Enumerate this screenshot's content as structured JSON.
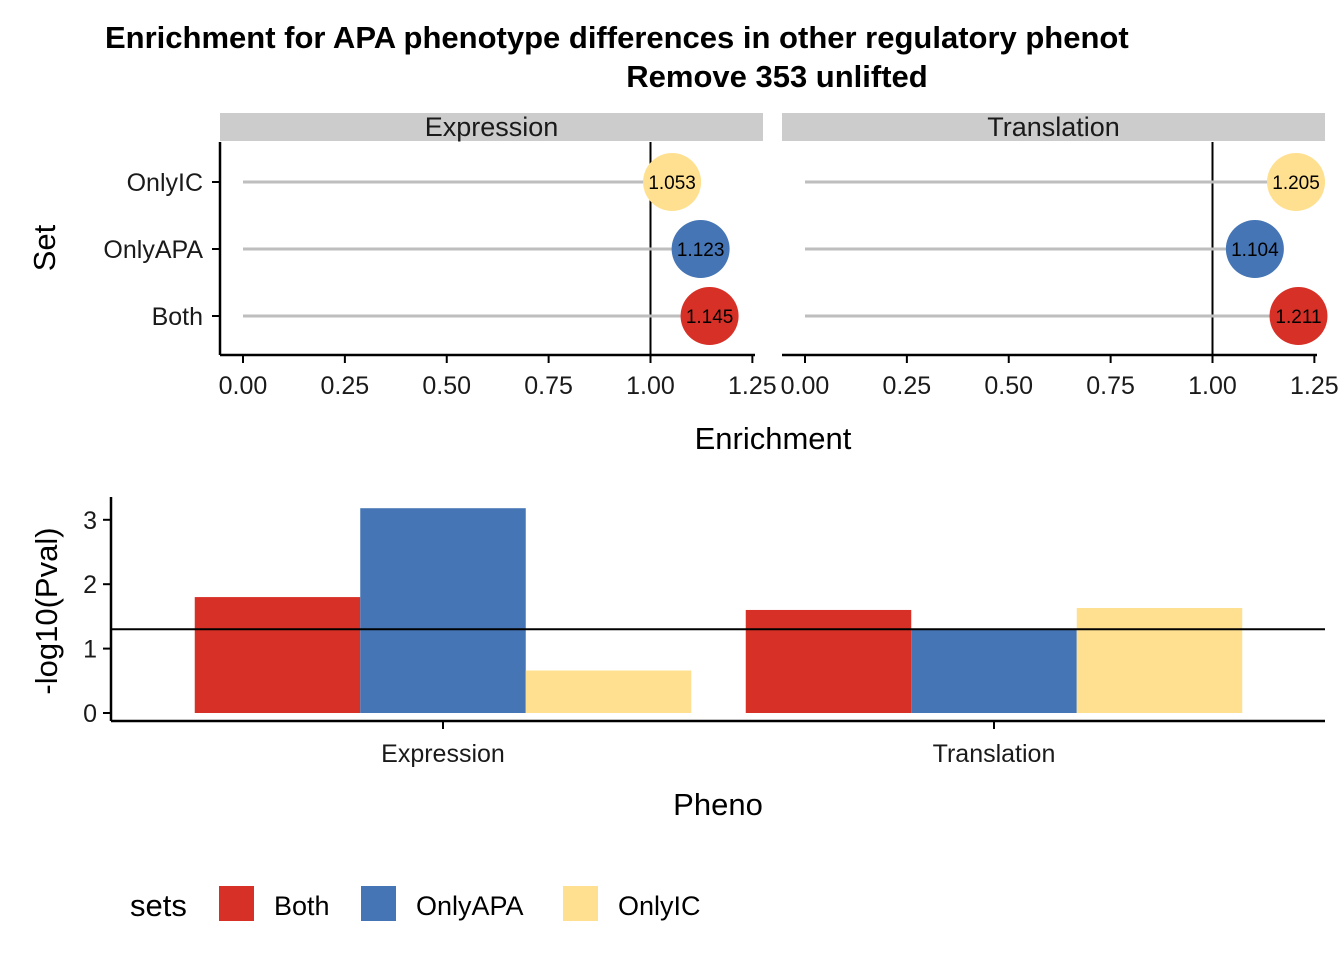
{
  "title_line1": "Enrichment for APA phenotype differences in other regulatory phenot",
  "title_line2": "Remove 353 unlifted",
  "chart_data": [
    {
      "type": "lollipop",
      "facets": [
        "Expression",
        "Translation"
      ],
      "sets": [
        "OnlyIC",
        "OnlyAPA",
        "Both"
      ],
      "values": {
        "Expression": {
          "OnlyIC": 1.053,
          "OnlyAPA": 1.123,
          "Both": 1.145
        },
        "Translation": {
          "OnlyIC": 1.205,
          "OnlyAPA": 1.104,
          "Both": 1.211
        }
      },
      "value_labels": {
        "Expression": {
          "OnlyIC": "1.053",
          "OnlyAPA": "1.123",
          "Both": "1.145"
        },
        "Translation": {
          "OnlyIC": "1.205",
          "OnlyAPA": "1.104",
          "Both": "1.211"
        }
      },
      "xlabel": "Enrichment",
      "ylabel": "Set",
      "xlim": [
        0,
        1.25
      ],
      "xticks": [
        "0.00",
        "0.25",
        "0.50",
        "0.75",
        "1.00",
        "1.25"
      ],
      "reference_line": 1.0,
      "grid": false
    },
    {
      "type": "bar",
      "categories": [
        "Expression",
        "Translation"
      ],
      "series": [
        {
          "name": "Both",
          "values": [
            1.8,
            1.6
          ]
        },
        {
          "name": "OnlyAPA",
          "values": [
            3.18,
            1.3
          ]
        },
        {
          "name": "OnlyIC",
          "values": [
            0.66,
            1.63
          ]
        }
      ],
      "xlabel": "Pheno",
      "ylabel": "-log10(Pval)",
      "ylim": [
        -0.12,
        3.3
      ],
      "yticks": [
        "0",
        "1",
        "2",
        "3"
      ],
      "reference_line": 1.3,
      "grid": false,
      "legend_title": "sets",
      "legend_position": "bottom"
    }
  ],
  "colors": {
    "Both": "#D73027",
    "OnlyAPA": "#4575B4",
    "OnlyIC": "#FEE090"
  }
}
